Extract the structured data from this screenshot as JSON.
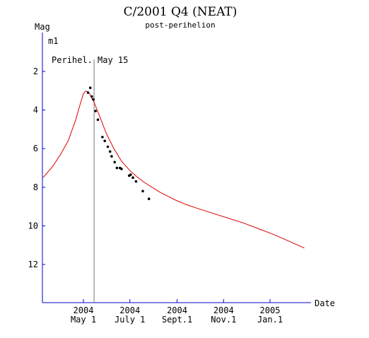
{
  "chart_data": {
    "type": "line",
    "title": "C/2001 Q4 (NEAT)",
    "subtitle": "post-perihelion",
    "ylabel": "Mag",
    "xlabel": "Date",
    "series_label": "m1",
    "annotation": "Perihel. May 15",
    "ylim": [
      14,
      0.5
    ],
    "y_ticks": [
      2,
      4,
      6,
      8,
      10,
      12
    ],
    "x_ticks": [
      {
        "year": "2004",
        "date": "May 1",
        "day": 0
      },
      {
        "year": "2004",
        "date": "July 1",
        "day": 61
      },
      {
        "year": "2004",
        "date": "Sept.1",
        "day": 123
      },
      {
        "year": "2004",
        "date": "Nov.1",
        "day": 184
      },
      {
        "year": "2005",
        "date": "Jan.1",
        "day": 245
      }
    ],
    "xlim": [
      -53,
      348
    ],
    "perihelion_day": 14,
    "model_curve": {
      "color": "#dd0000",
      "x": [
        -53,
        -40,
        -30,
        -20,
        -10,
        -5,
        0,
        3,
        5,
        8,
        10,
        12,
        14,
        16,
        18,
        20,
        25,
        30,
        40,
        50,
        60,
        70,
        80,
        90,
        100,
        110,
        120,
        135,
        150,
        170,
        190,
        210,
        230,
        250,
        270,
        290
      ],
      "y": [
        7.5,
        6.9,
        6.3,
        5.6,
        4.5,
        3.8,
        3.15,
        3.02,
        3.05,
        3.15,
        3.3,
        3.45,
        3.6,
        3.8,
        4.0,
        4.2,
        4.7,
        5.2,
        6.0,
        6.65,
        7.1,
        7.45,
        7.75,
        8.0,
        8.25,
        8.45,
        8.65,
        8.9,
        9.1,
        9.35,
        9.6,
        9.85,
        10.15,
        10.45,
        10.8,
        11.15
      ]
    },
    "observations": {
      "color": "#000000",
      "x": [
        6,
        9,
        11,
        13,
        16,
        19,
        25,
        28,
        32,
        35,
        37,
        41,
        44,
        48,
        50,
        60,
        62,
        65,
        69,
        78,
        86
      ],
      "y": [
        3.1,
        2.85,
        3.3,
        3.45,
        4.05,
        4.5,
        5.4,
        5.6,
        5.9,
        6.15,
        6.4,
        6.7,
        7.0,
        7.0,
        7.05,
        7.4,
        7.35,
        7.5,
        7.7,
        8.2,
        8.6
      ]
    }
  }
}
